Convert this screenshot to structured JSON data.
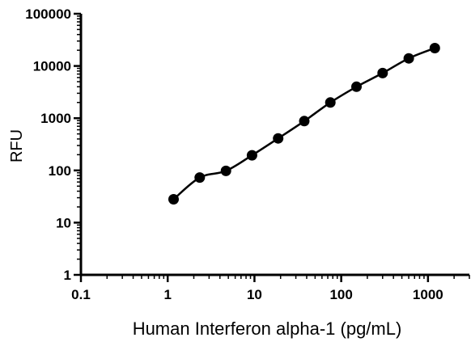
{
  "chart_data": {
    "type": "scatter",
    "title": "",
    "xlabel": "Human Interferon alpha-1 (pg/mL)",
    "ylabel": "RFU",
    "x_scale": "log",
    "y_scale": "log",
    "xlim": [
      0.1,
      3000
    ],
    "ylim": [
      1,
      100000
    ],
    "x_ticks": [
      "0.1",
      "1",
      "10",
      "100",
      "1000"
    ],
    "y_ticks": [
      "1",
      "10",
      "100",
      "1000",
      "10000",
      "100000"
    ],
    "grid": false,
    "legend": "none",
    "series": [
      {
        "x": [
          1.17,
          2.34,
          4.69,
          9.38,
          18.75,
          37.5,
          75,
          150,
          300,
          600,
          1200
        ],
        "y": [
          28,
          73,
          98,
          195,
          410,
          880,
          2000,
          4000,
          7300,
          14000,
          22000
        ],
        "marker_color": "#000000",
        "fit_line": true
      }
    ]
  }
}
